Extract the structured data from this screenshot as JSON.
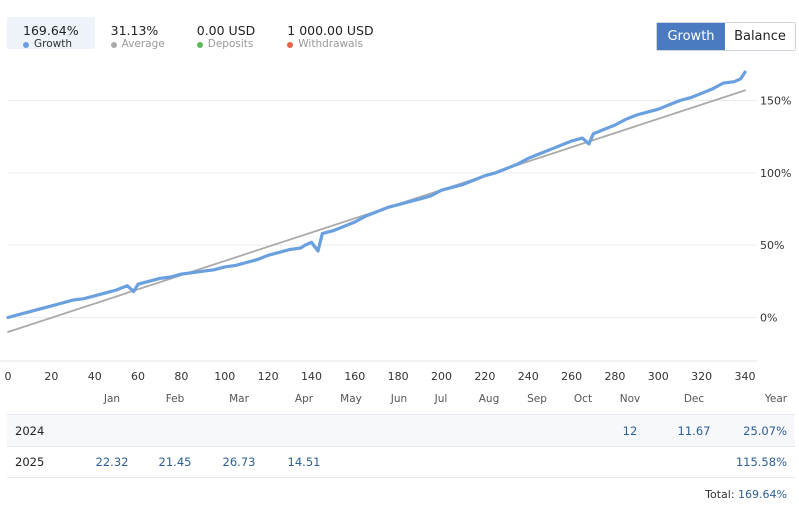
{
  "stats": [
    {
      "value": "169.64%",
      "label": "Growth",
      "color": "#6a9fe0"
    },
    {
      "value": "31.13%",
      "label": "Average",
      "color": "#aaaaaa"
    },
    {
      "value": "0.00 USD",
      "label": "Deposits",
      "color": "#5cb85c"
    },
    {
      "value": "1 000.00 USD",
      "label": "Withdrawals",
      "color": "#e8634a"
    }
  ],
  "toggle": {
    "growth_label": "Growth",
    "balance_label": "Balance",
    "active": "Growth"
  },
  "chart_data": {
    "type": "line",
    "xlim": [
      0,
      340
    ],
    "ylim": [
      -28,
      178
    ],
    "x_ticks": [
      "0",
      "20",
      "40",
      "60",
      "80",
      "100",
      "120",
      "140",
      "160",
      "180",
      "200",
      "220",
      "240",
      "260",
      "280",
      "300",
      "320",
      "340"
    ],
    "y_ticks": [
      "0%",
      "50%",
      "100%",
      "150%"
    ],
    "series": [
      {
        "color": "#6a9fe0",
        "points": [
          [
            0,
            0
          ],
          [
            5,
            2
          ],
          [
            10,
            4
          ],
          [
            15,
            6
          ],
          [
            20,
            8
          ],
          [
            25,
            10
          ],
          [
            30,
            12
          ],
          [
            35,
            13
          ],
          [
            40,
            15
          ],
          [
            45,
            17
          ],
          [
            50,
            19
          ],
          [
            55,
            22
          ],
          [
            58,
            18
          ],
          [
            60,
            23
          ],
          [
            65,
            25
          ],
          [
            70,
            27
          ],
          [
            75,
            28
          ],
          [
            80,
            30
          ],
          [
            85,
            31
          ],
          [
            90,
            32
          ],
          [
            95,
            33
          ],
          [
            100,
            35
          ],
          [
            105,
            36
          ],
          [
            110,
            38
          ],
          [
            115,
            40
          ],
          [
            120,
            43
          ],
          [
            125,
            45
          ],
          [
            130,
            47
          ],
          [
            135,
            48
          ],
          [
            137,
            50
          ],
          [
            140,
            52
          ],
          [
            143,
            46
          ],
          [
            145,
            58
          ],
          [
            150,
            60
          ],
          [
            155,
            63
          ],
          [
            160,
            66
          ],
          [
            165,
            70
          ],
          [
            170,
            73
          ],
          [
            175,
            76
          ],
          [
            180,
            78
          ],
          [
            185,
            80
          ],
          [
            190,
            82
          ],
          [
            195,
            84
          ],
          [
            200,
            88
          ],
          [
            205,
            90
          ],
          [
            210,
            92
          ],
          [
            215,
            95
          ],
          [
            220,
            98
          ],
          [
            225,
            100
          ],
          [
            230,
            103
          ],
          [
            235,
            106
          ],
          [
            240,
            110
          ],
          [
            245,
            113
          ],
          [
            250,
            116
          ],
          [
            255,
            119
          ],
          [
            260,
            122
          ],
          [
            265,
            124
          ],
          [
            268,
            120
          ],
          [
            270,
            127
          ],
          [
            275,
            130
          ],
          [
            280,
            133
          ],
          [
            285,
            137
          ],
          [
            290,
            140
          ],
          [
            295,
            142
          ],
          [
            300,
            144
          ],
          [
            305,
            147
          ],
          [
            310,
            150
          ],
          [
            315,
            152
          ],
          [
            320,
            155
          ],
          [
            325,
            158
          ],
          [
            330,
            162
          ],
          [
            335,
            163
          ],
          [
            338,
            165
          ],
          [
            340,
            169.64
          ]
        ]
      },
      {
        "color": "#aaaaaa",
        "points": [
          [
            0,
            -10
          ],
          [
            340,
            157
          ]
        ]
      }
    ]
  },
  "table": {
    "months": [
      "Jan",
      "Feb",
      "Mar",
      "Apr",
      "May",
      "Jun",
      "Jul",
      "Aug",
      "Sep",
      "Oct",
      "Nov",
      "Dec"
    ],
    "year_header": "Year",
    "rows": [
      {
        "year": "2024",
        "cells": {
          "Nov": "12",
          "Dec": "11.67"
        },
        "total": "25.07%"
      },
      {
        "year": "2025",
        "cells": {
          "Jan": "22.32",
          "Feb": "21.45",
          "Mar": "26.73",
          "Apr": "14.51"
        },
        "total": "115.58%"
      }
    ],
    "total_label": "Total:",
    "total_value": "169.64%"
  }
}
